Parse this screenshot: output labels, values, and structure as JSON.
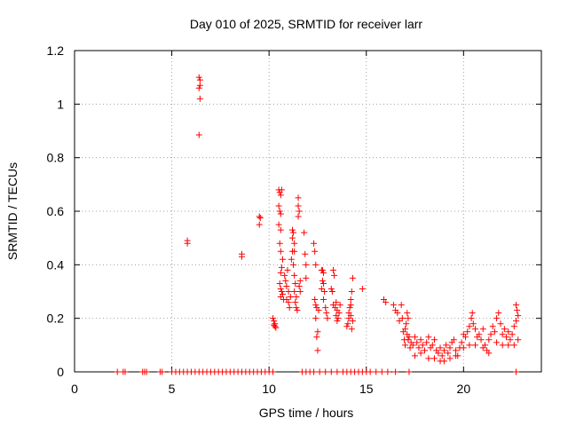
{
  "chart_data": {
    "type": "scatter",
    "title": "Day 010 of 2025, SRMTID for receiver larr",
    "xlabel": "GPS time / hours",
    "ylabel": "SRMTID / TECUs",
    "xlim": [
      0,
      24
    ],
    "ylim": [
      0,
      1.2
    ],
    "xticks": [
      0,
      5,
      10,
      15,
      20
    ],
    "xtick_labels": [
      "0",
      "5",
      "10",
      "15",
      "20"
    ],
    "yticks": [
      0,
      0.2,
      0.4,
      0.6,
      0.8,
      1.0,
      1.2
    ],
    "ytick_labels": [
      "0",
      "0.2",
      "0.4",
      "0.6",
      "0.8",
      "1",
      "1.2"
    ],
    "grid": true,
    "marker": "+",
    "series": [
      {
        "name": "SRMTID",
        "color": "#ff0000",
        "points": [
          [
            2.2,
            0
          ],
          [
            2.5,
            0
          ],
          [
            2.6,
            0
          ],
          [
            3.5,
            0
          ],
          [
            3.6,
            0
          ],
          [
            3.7,
            0
          ],
          [
            4.4,
            0
          ],
          [
            4.5,
            0
          ],
          [
            5.0,
            0
          ],
          [
            5.2,
            0
          ],
          [
            5.4,
            0
          ],
          [
            5.6,
            0
          ],
          [
            5.8,
            0
          ],
          [
            6.0,
            0
          ],
          [
            6.2,
            0
          ],
          [
            6.4,
            0
          ],
          [
            6.6,
            0
          ],
          [
            6.8,
            0
          ],
          [
            7.0,
            0
          ],
          [
            7.2,
            0
          ],
          [
            7.4,
            0
          ],
          [
            7.6,
            0
          ],
          [
            7.8,
            0
          ],
          [
            8.0,
            0
          ],
          [
            8.2,
            0
          ],
          [
            8.4,
            0
          ],
          [
            8.6,
            0
          ],
          [
            8.8,
            0
          ],
          [
            9.0,
            0
          ],
          [
            9.2,
            0
          ],
          [
            9.4,
            0
          ],
          [
            9.6,
            0
          ],
          [
            9.8,
            0
          ],
          [
            10.0,
            0
          ],
          [
            10.2,
            0
          ],
          [
            11.7,
            0
          ],
          [
            11.9,
            0
          ],
          [
            12.1,
            0
          ],
          [
            12.3,
            0
          ],
          [
            12.6,
            0
          ],
          [
            12.9,
            0
          ],
          [
            13.2,
            0
          ],
          [
            13.5,
            0
          ],
          [
            13.8,
            0
          ],
          [
            14.0,
            0
          ],
          [
            14.2,
            0
          ],
          [
            14.4,
            0
          ],
          [
            14.6,
            0
          ],
          [
            14.8,
            0
          ],
          [
            15.0,
            0
          ],
          [
            15.2,
            0
          ],
          [
            15.5,
            0
          ],
          [
            15.8,
            0
          ],
          [
            16.1,
            0
          ],
          [
            16.5,
            0
          ],
          [
            17.2,
            0
          ],
          [
            22.7,
            0
          ],
          [
            5.8,
            0.49
          ],
          [
            5.8,
            0.48
          ],
          [
            6.4,
            1.1
          ],
          [
            6.45,
            1.09
          ],
          [
            6.4,
            1.06
          ],
          [
            6.45,
            1.07
          ],
          [
            6.45,
            1.02
          ],
          [
            6.4,
            0.885
          ],
          [
            8.6,
            0.44
          ],
          [
            8.6,
            0.43
          ],
          [
            9.5,
            0.58
          ],
          [
            9.55,
            0.575
          ],
          [
            9.5,
            0.55
          ],
          [
            10.2,
            0.2
          ],
          [
            10.25,
            0.19
          ],
          [
            10.3,
            0.18
          ],
          [
            10.3,
            0.17
          ],
          [
            10.35,
            0.165
          ],
          [
            10.25,
            0.175
          ],
          [
            10.5,
            0.68
          ],
          [
            10.55,
            0.67
          ],
          [
            10.6,
            0.66
          ],
          [
            10.65,
            0.68
          ],
          [
            10.5,
            0.62
          ],
          [
            10.55,
            0.6
          ],
          [
            10.6,
            0.59
          ],
          [
            10.5,
            0.55
          ],
          [
            10.6,
            0.53
          ],
          [
            10.55,
            0.48
          ],
          [
            10.6,
            0.45
          ],
          [
            10.7,
            0.42
          ],
          [
            10.65,
            0.39
          ],
          [
            10.6,
            0.37
          ],
          [
            10.55,
            0.33
          ],
          [
            10.6,
            0.31
          ],
          [
            10.65,
            0.3
          ],
          [
            10.7,
            0.29
          ],
          [
            10.6,
            0.28
          ],
          [
            10.75,
            0.27
          ],
          [
            10.8,
            0.36
          ],
          [
            10.85,
            0.34
          ],
          [
            10.9,
            0.32
          ],
          [
            10.95,
            0.38
          ],
          [
            11.0,
            0.3
          ],
          [
            10.9,
            0.27
          ],
          [
            11.0,
            0.26
          ],
          [
            11.1,
            0.28
          ],
          [
            11.05,
            0.24
          ],
          [
            11.15,
            0.42
          ],
          [
            11.2,
            0.45
          ],
          [
            11.2,
            0.53
          ],
          [
            11.25,
            0.52
          ],
          [
            11.2,
            0.5
          ],
          [
            11.3,
            0.48
          ],
          [
            11.3,
            0.45
          ],
          [
            11.25,
            0.4
          ],
          [
            11.3,
            0.36
          ],
          [
            11.35,
            0.33
          ],
          [
            11.3,
            0.3
          ],
          [
            11.4,
            0.28
          ],
          [
            11.35,
            0.26
          ],
          [
            11.4,
            0.24
          ],
          [
            11.45,
            0.23
          ],
          [
            11.5,
            0.65
          ],
          [
            11.5,
            0.62
          ],
          [
            11.55,
            0.6
          ],
          [
            11.5,
            0.58
          ],
          [
            11.6,
            0.34
          ],
          [
            11.55,
            0.32
          ],
          [
            11.6,
            0.3
          ],
          [
            11.8,
            0.52
          ],
          [
            11.85,
            0.44
          ],
          [
            11.9,
            0.4
          ],
          [
            11.9,
            0.35
          ],
          [
            12.3,
            0.48
          ],
          [
            12.35,
            0.45
          ],
          [
            12.4,
            0.4
          ],
          [
            12.35,
            0.27
          ],
          [
            12.4,
            0.25
          ],
          [
            12.45,
            0.24
          ],
          [
            12.4,
            0.2
          ],
          [
            12.5,
            0.15
          ],
          [
            12.45,
            0.13
          ],
          [
            12.5,
            0.08
          ],
          [
            12.55,
            0.23
          ],
          [
            12.7,
            0.38
          ],
          [
            12.75,
            0.38
          ],
          [
            12.8,
            0.37
          ],
          [
            12.75,
            0.34
          ],
          [
            12.8,
            0.33
          ],
          [
            12.7,
            0.31
          ],
          [
            12.85,
            0.3
          ],
          [
            12.8,
            0.27
          ],
          [
            12.9,
            0.24
          ],
          [
            12.95,
            0.22
          ],
          [
            13.0,
            0.2
          ],
          [
            13.2,
            0.31
          ],
          [
            13.25,
            0.3
          ],
          [
            13.3,
            0.38
          ],
          [
            13.35,
            0.36
          ],
          [
            13.3,
            0.25
          ],
          [
            13.4,
            0.24
          ],
          [
            13.45,
            0.26
          ],
          [
            13.5,
            0.23
          ],
          [
            13.45,
            0.21
          ],
          [
            13.55,
            0.2
          ],
          [
            13.5,
            0.19
          ],
          [
            13.6,
            0.22
          ],
          [
            13.65,
            0.25
          ],
          [
            14.0,
            0.17
          ],
          [
            14.05,
            0.18
          ],
          [
            14.1,
            0.2
          ],
          [
            14.1,
            0.22
          ],
          [
            14.15,
            0.24
          ],
          [
            14.2,
            0.25
          ],
          [
            14.2,
            0.27
          ],
          [
            14.25,
            0.3
          ],
          [
            14.3,
            0.35
          ],
          [
            14.25,
            0.16
          ],
          [
            14.2,
            0.21
          ],
          [
            14.3,
            0.19
          ],
          [
            14.8,
            0.31
          ],
          [
            15.9,
            0.27
          ],
          [
            16.0,
            0.26
          ],
          [
            16.4,
            0.25
          ],
          [
            16.5,
            0.23
          ],
          [
            16.6,
            0.22
          ],
          [
            16.7,
            0.19
          ],
          [
            16.8,
            0.25
          ],
          [
            16.85,
            0.2
          ],
          [
            16.9,
            0.15
          ],
          [
            16.95,
            0.12
          ],
          [
            17.0,
            0.1
          ],
          [
            17.0,
            0.16
          ],
          [
            17.05,
            0.18
          ],
          [
            17.1,
            0.14
          ],
          [
            17.15,
            0.12
          ],
          [
            17.2,
            0.13
          ],
          [
            17.25,
            0.09
          ],
          [
            17.3,
            0.11
          ],
          [
            17.1,
            0.22
          ],
          [
            17.15,
            0.2
          ],
          [
            17.4,
            0.1
          ],
          [
            17.5,
            0.13
          ],
          [
            17.6,
            0.11
          ],
          [
            17.7,
            0.09
          ],
          [
            17.8,
            0.12
          ],
          [
            17.9,
            0.1
          ],
          [
            18.0,
            0.08
          ],
          [
            18.1,
            0.11
          ],
          [
            18.2,
            0.13
          ],
          [
            18.3,
            0.09
          ],
          [
            18.4,
            0.1
          ],
          [
            18.5,
            0.12
          ],
          [
            18.6,
            0.08
          ],
          [
            18.7,
            0.07
          ],
          [
            18.8,
            0.09
          ],
          [
            18.9,
            0.06
          ],
          [
            19.0,
            0.08
          ],
          [
            19.1,
            0.1
          ],
          [
            19.2,
            0.07
          ],
          [
            19.3,
            0.09
          ],
          [
            19.4,
            0.11
          ],
          [
            19.5,
            0.12
          ],
          [
            19.6,
            0.08
          ],
          [
            19.7,
            0.06
          ],
          [
            19.8,
            0.09
          ],
          [
            19.9,
            0.11
          ],
          [
            20.0,
            0.14
          ],
          [
            20.1,
            0.13
          ],
          [
            20.2,
            0.15
          ],
          [
            20.3,
            0.17
          ],
          [
            20.4,
            0.2
          ],
          [
            20.45,
            0.22
          ],
          [
            20.5,
            0.18
          ],
          [
            20.6,
            0.16
          ],
          [
            20.7,
            0.13
          ],
          [
            20.8,
            0.14
          ],
          [
            20.9,
            0.12
          ],
          [
            21.0,
            0.16
          ],
          [
            21.1,
            0.1
          ],
          [
            21.2,
            0.08
          ],
          [
            21.3,
            0.12
          ],
          [
            21.4,
            0.14
          ],
          [
            21.5,
            0.17
          ],
          [
            21.6,
            0.15
          ],
          [
            21.7,
            0.2
          ],
          [
            21.8,
            0.22
          ],
          [
            21.9,
            0.18
          ],
          [
            22.0,
            0.14
          ],
          [
            22.1,
            0.16
          ],
          [
            22.2,
            0.13
          ],
          [
            22.3,
            0.15
          ],
          [
            22.4,
            0.12
          ],
          [
            22.5,
            0.14
          ],
          [
            22.6,
            0.17
          ],
          [
            22.7,
            0.25
          ],
          [
            22.75,
            0.23
          ],
          [
            22.8,
            0.21
          ],
          [
            22.7,
            0.19
          ],
          [
            22.8,
            0.12
          ],
          [
            17.5,
            0.06
          ],
          [
            17.8,
            0.07
          ],
          [
            18.2,
            0.05
          ],
          [
            18.5,
            0.05
          ],
          [
            18.8,
            0.04
          ],
          [
            19.0,
            0.04
          ],
          [
            19.3,
            0.05
          ],
          [
            19.6,
            0.06
          ],
          [
            20.0,
            0.09
          ],
          [
            20.3,
            0.1
          ],
          [
            20.6,
            0.1
          ],
          [
            21.0,
            0.09
          ],
          [
            21.3,
            0.07
          ],
          [
            21.7,
            0.11
          ],
          [
            22.0,
            0.1
          ],
          [
            22.3,
            0.1
          ],
          [
            22.6,
            0.1
          ]
        ]
      }
    ]
  }
}
